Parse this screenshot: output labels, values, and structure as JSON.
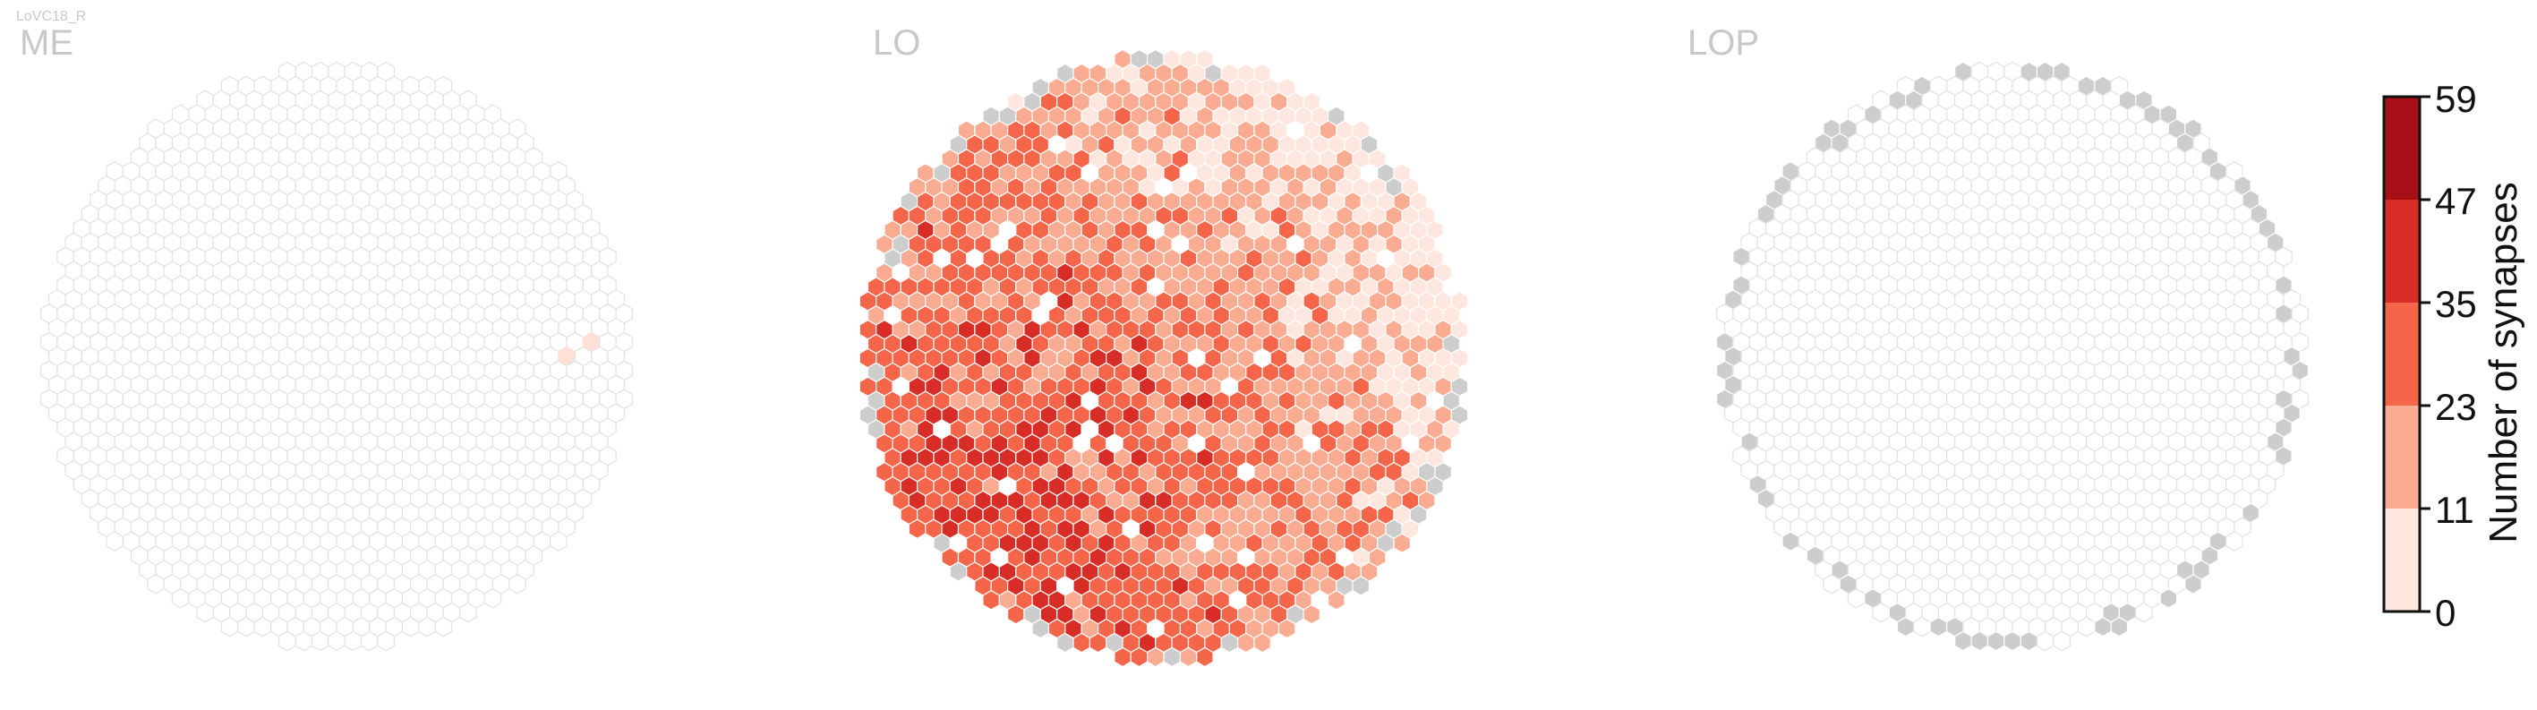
{
  "cell_type": "LoVC18_R",
  "chart_data": {
    "type": "heatmap",
    "panels": [
      {
        "title": "ME",
        "pattern": "me"
      },
      {
        "title": "LO",
        "pattern": "lo"
      },
      {
        "title": "LOP",
        "pattern": "lop"
      }
    ],
    "colorbar": {
      "label": "Number of synapses",
      "ticks": [
        "0",
        "11",
        "23",
        "35",
        "47",
        "59"
      ],
      "bins": [
        {
          "min": 0,
          "max": 11,
          "color": "#fde7df"
        },
        {
          "min": 11,
          "max": 23,
          "color": "#f9ac92"
        },
        {
          "min": 23,
          "max": 35,
          "color": "#f46549"
        },
        {
          "min": 35,
          "max": 47,
          "color": "#d82d27"
        },
        {
          "min": 47,
          "max": 59,
          "color": "#a50f15"
        }
      ]
    },
    "colors": {
      "empty_fill": "#ffffff",
      "empty_stroke": "#e2e2e2",
      "no_column": "#cdcdcd",
      "cell_stroke": "#ffffff"
    }
  }
}
